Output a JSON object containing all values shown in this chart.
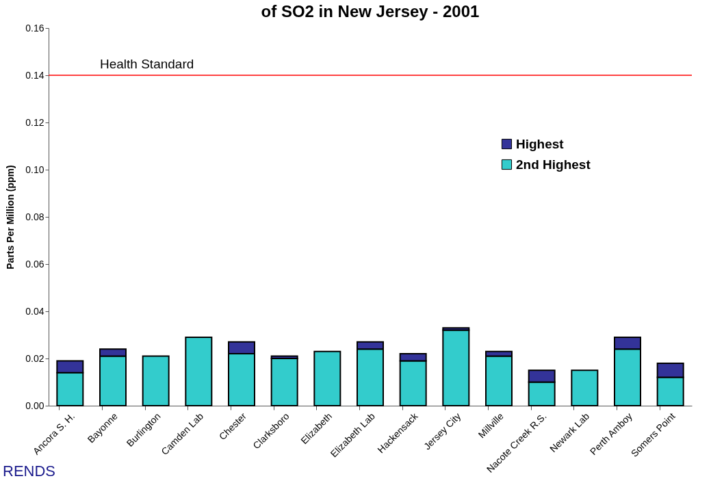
{
  "chart_data": {
    "type": "bar",
    "title": "of SO2 in New Jersey - 2001",
    "ylabel": "Parts Per Million (ppm)",
    "annotations": [
      "RENDS"
    ],
    "categories": [
      "Ancora S. H.",
      "Bayonne",
      "Burlington",
      "Camden Lab",
      "Chester",
      "Clarksboro",
      "Elizabeth",
      "Elizabeth Lab",
      "Hackensack",
      "Jersey City",
      "Millville",
      "Nacote Creek R.S.",
      "Newark Lab",
      "Perth Amboy",
      "Somers Point"
    ],
    "stacked": true,
    "series": [
      {
        "name": "2nd Highest",
        "color": "#33cccc",
        "values": [
          0.014,
          0.021,
          0.021,
          0.029,
          0.022,
          0.02,
          0.023,
          0.024,
          0.019,
          0.032,
          0.021,
          0.01,
          0.015,
          0.024,
          0.012
        ]
      },
      {
        "name": "Highest",
        "color": "#333399",
        "values": [
          0.005,
          0.003,
          0,
          0,
          0.005,
          0.001,
          0,
          0.003,
          0.003,
          0.001,
          0.002,
          0.005,
          0,
          0.005,
          0.006
        ]
      }
    ],
    "ylim": [
      0,
      0.16
    ],
    "yticks": [
      {
        "value": 0,
        "label": "0.00"
      },
      {
        "value": 0.02,
        "label": "0.02"
      },
      {
        "value": 0.04,
        "label": "0.04"
      },
      {
        "value": 0.06,
        "label": "0.06"
      },
      {
        "value": 0.08,
        "label": "0.08"
      },
      {
        "value": 0.1,
        "label": "0.10"
      },
      {
        "value": 0.12,
        "label": "0.12"
      },
      {
        "value": 0.14,
        "label": "0.14"
      },
      {
        "value": 0.16,
        "label": "0.16"
      }
    ],
    "ref_lines": [
      {
        "axis": "y",
        "value": 0.14,
        "label": "Health Standard",
        "color": "#ff0000"
      }
    ],
    "legend": "top right"
  }
}
